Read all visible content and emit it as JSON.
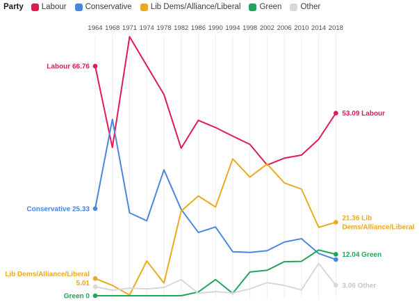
{
  "legend": {
    "title": "Party",
    "items": [
      {
        "label": "Labour",
        "color": "#e01b50"
      },
      {
        "label": "Conservative",
        "color": "#4a86e0"
      },
      {
        "label": "Lib Dems/Alliance/Liberal",
        "color": "#eca920"
      },
      {
        "label": "Green",
        "color": "#22a55b"
      },
      {
        "label": "Other",
        "color": "#d8d8d8"
      }
    ]
  },
  "chart_data": {
    "type": "line",
    "title": "",
    "xlabel": "",
    "ylabel": "",
    "x": [
      1964,
      1968,
      1971,
      1974,
      1978,
      1982,
      1986,
      1990,
      1994,
      1998,
      2002,
      2006,
      2010,
      2014,
      2018
    ],
    "ylim": [
      0,
      80
    ],
    "grid": "vertical",
    "legend_position": "top",
    "series": [
      {
        "id": "labour",
        "name": "Labour",
        "color": "#e01b50",
        "start_dot": true,
        "end_dot": true,
        "values": [
          66.76,
          43.1,
          75.3,
          66.9,
          58.5,
          42.9,
          51.0,
          48.9,
          46.4,
          44.0,
          38.0,
          40.0,
          40.9,
          45.5,
          53.09
        ]
      },
      {
        "id": "conservative",
        "name": "Conservative",
        "color": "#4a86e0",
        "start_dot": true,
        "end_dot": true,
        "values": [
          25.33,
          51.3,
          24.1,
          21.8,
          36.6,
          25.1,
          18.4,
          20.0,
          12.8,
          12.6,
          13.1,
          15.6,
          16.6,
          12.3,
          10.5
        ]
      },
      {
        "id": "libdem",
        "name": "Lib Dems/Alliance/Liberal",
        "color": "#eca920",
        "start_dot": true,
        "end_dot": true,
        "values": [
          5.01,
          3.0,
          0.2,
          10.1,
          3.7,
          24.6,
          29.0,
          25.8,
          39.8,
          34.5,
          38.3,
          32.8,
          31.0,
          19.9,
          21.36
        ]
      },
      {
        "id": "green",
        "name": "Green",
        "color": "#22a55b",
        "start_dot": true,
        "end_dot": true,
        "values": [
          0,
          0,
          0,
          0,
          0,
          0,
          1.1,
          4.7,
          0.7,
          6.9,
          7.4,
          9.9,
          10.0,
          13.3,
          12.04
        ]
      },
      {
        "id": "other",
        "name": "Other",
        "color": "#d8d8d8",
        "start_dot": true,
        "end_dot": true,
        "values": [
          2.6,
          1.6,
          2.2,
          2.0,
          2.4,
          4.7,
          0.7,
          1.2,
          0.8,
          2.0,
          3.8,
          3.0,
          1.7,
          9.4,
          3.06
        ]
      }
    ],
    "annotations": [
      {
        "series": "labour",
        "point": 0,
        "side": "left",
        "lines": [
          "Labour 66.76"
        ]
      },
      {
        "series": "conservative",
        "point": 0,
        "side": "left",
        "lines": [
          "Conservative 25.33"
        ]
      },
      {
        "series": "libdem",
        "point": 0,
        "side": "left",
        "lines": [
          "Lib Dems/Alliance/Liberal",
          "5.01"
        ]
      },
      {
        "series": "green",
        "point": 0,
        "side": "left",
        "lines": [
          "Green 0"
        ]
      },
      {
        "series": "labour",
        "point": 14,
        "side": "right",
        "lines": [
          "53.09 Labour"
        ]
      },
      {
        "series": "libdem",
        "point": 14,
        "side": "right",
        "lines": [
          "21.36 Lib",
          "Dems/Alliance/Liberal"
        ]
      },
      {
        "series": "green",
        "point": 14,
        "side": "right",
        "lines": [
          "12.04 Green"
        ]
      },
      {
        "series": "other",
        "point": 14,
        "side": "right",
        "label_color": "#c6c6c6",
        "lines": [
          "3.06 Other"
        ]
      }
    ]
  }
}
